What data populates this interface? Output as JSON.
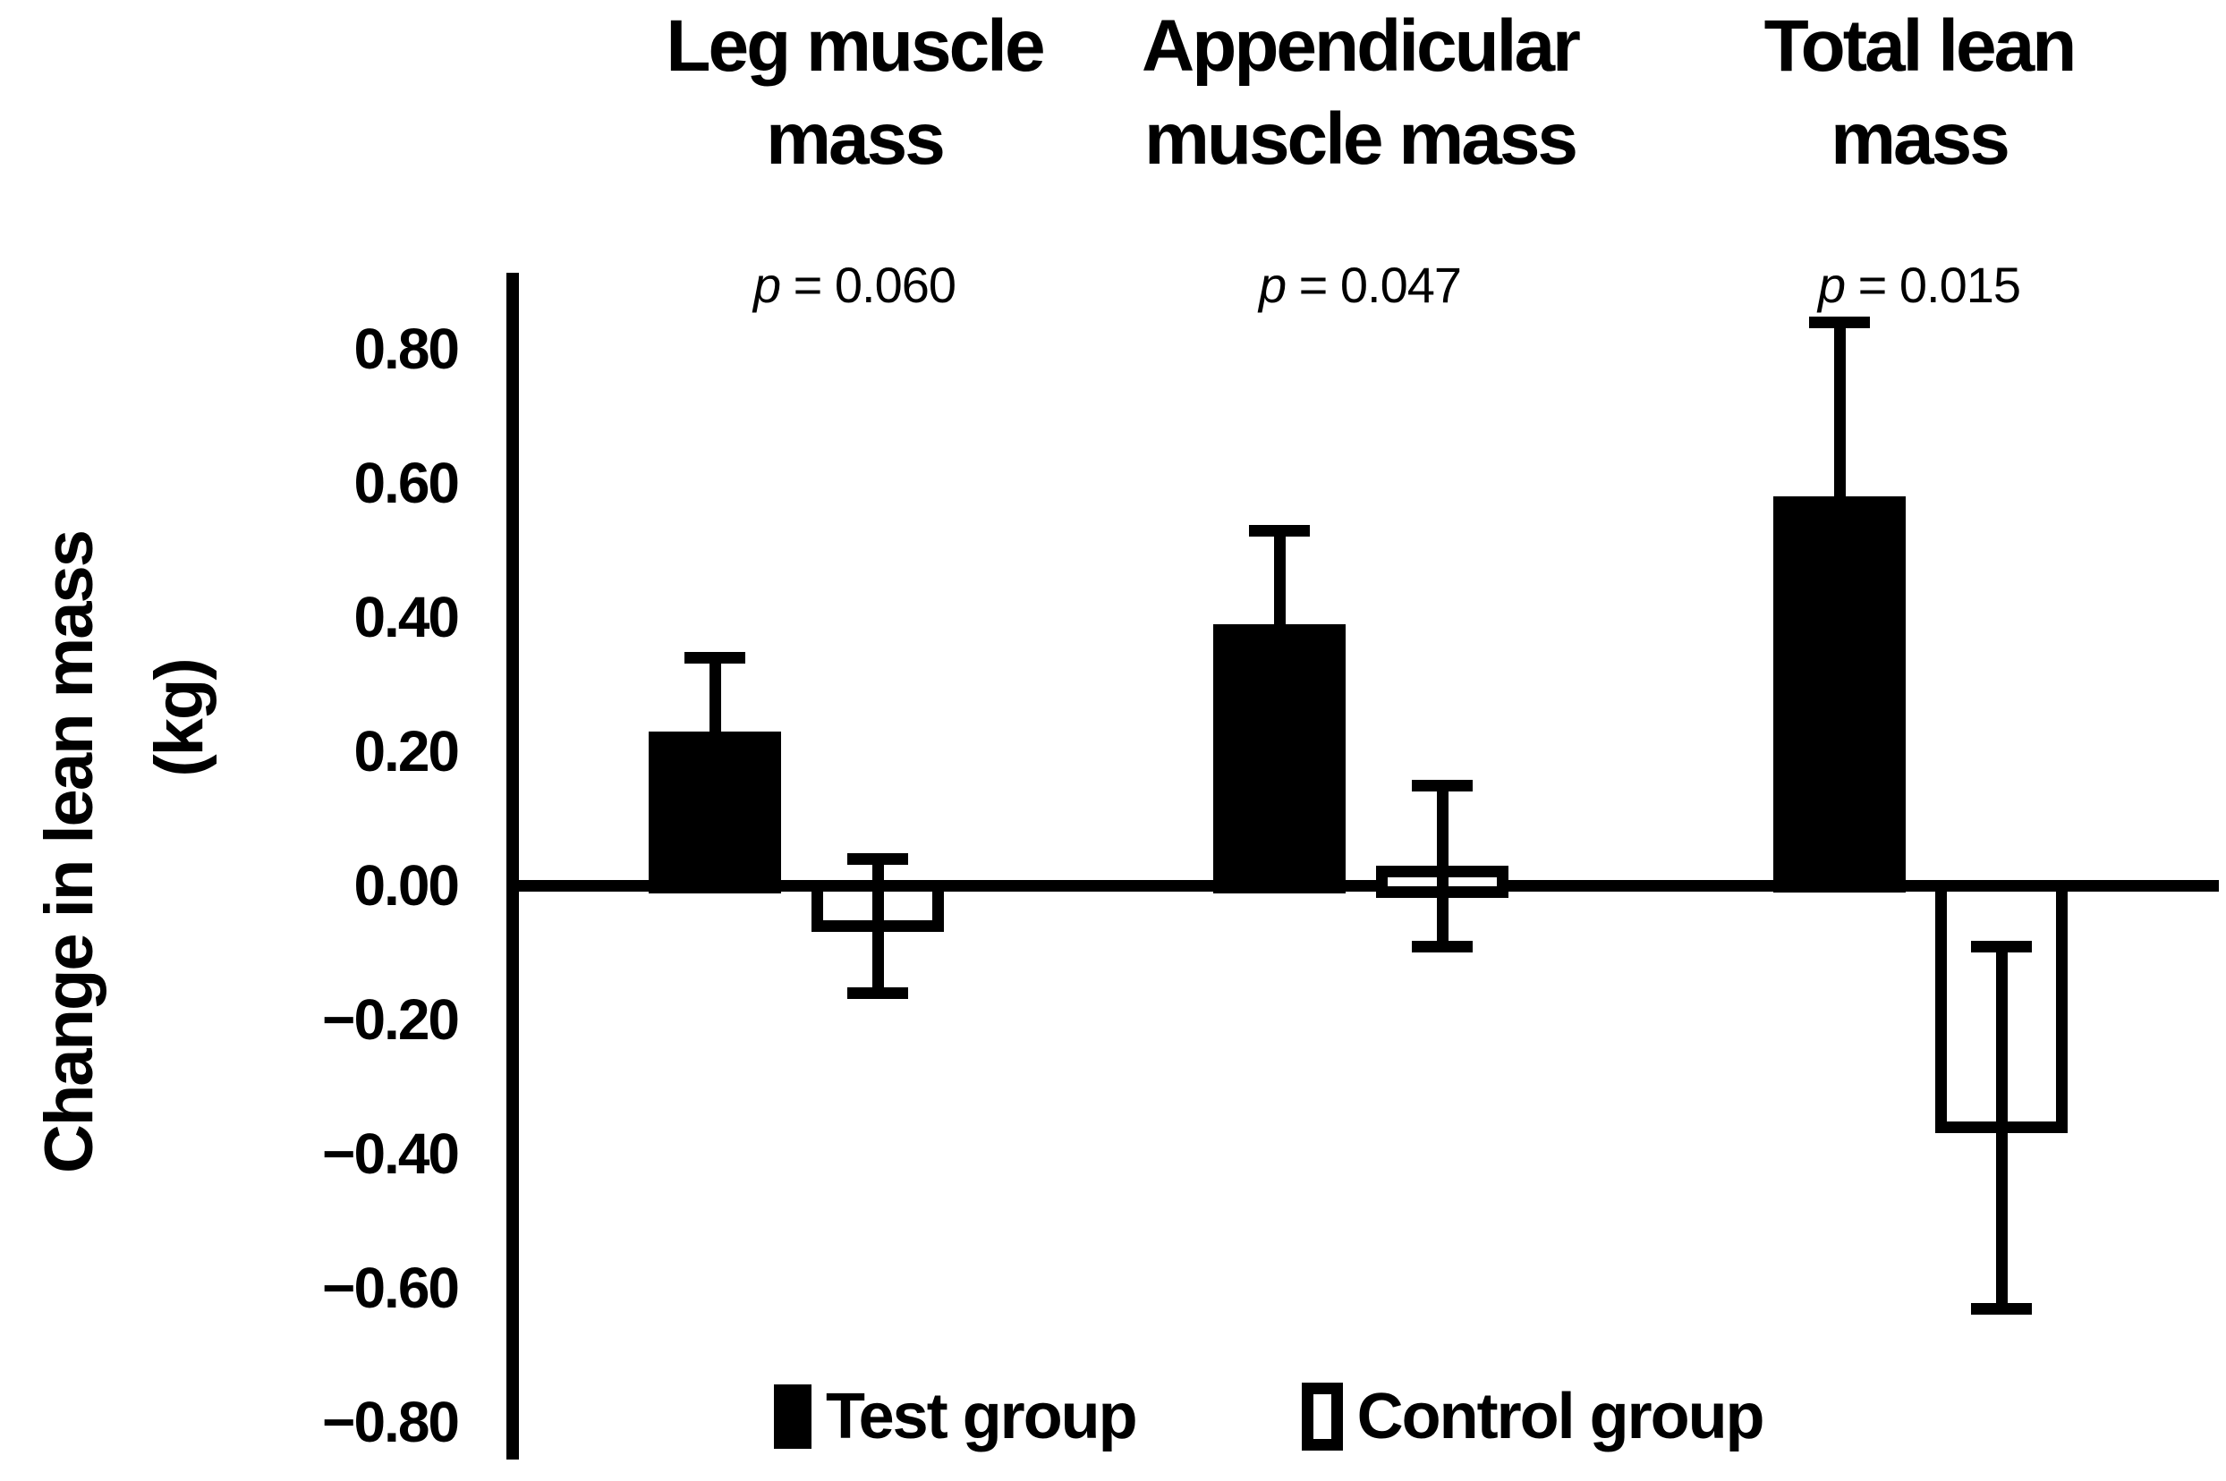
{
  "chart_data": {
    "type": "bar",
    "title": "",
    "ylabel": "Change in lean mass",
    "ylabel_line2": "(kg)",
    "ylim": [
      -0.8,
      0.8
    ],
    "ytick_step": 0.2,
    "yticks": [
      "0.80",
      "0.60",
      "0.40",
      "0.20",
      "0.00",
      "−0.20",
      "−0.40",
      "−0.60",
      "−0.80"
    ],
    "grid": false,
    "legend_position": "bottom",
    "categories": [
      "Leg muscle mass",
      "Appendicular muscle mass",
      "Total lean mass"
    ],
    "category_label_lines": [
      [
        "Leg muscle",
        "mass"
      ],
      [
        "Appendicular",
        "muscle mass"
      ],
      [
        "Total lean",
        "mass"
      ]
    ],
    "p_prefix": "p",
    "p_values": [
      "0.060",
      "0.047",
      "0.015"
    ],
    "p_labels": [
      "p = 0.060",
      "p = 0.047",
      "p = 0.015"
    ],
    "series": [
      {
        "name": "Test group",
        "fill": "#000000",
        "values": [
          0.23,
          0.39,
          0.58
        ],
        "errors": [
          0.11,
          0.14,
          0.26
        ],
        "error_direction": "up"
      },
      {
        "name": "Control group",
        "fill": "#ffffff",
        "values": [
          -0.06,
          0.03,
          -0.36
        ],
        "errors": [
          0.1,
          0.12,
          0.27
        ],
        "error_direction": "both"
      }
    ],
    "colors": {
      "foreground": "#000000",
      "background": "#ffffff"
    }
  }
}
